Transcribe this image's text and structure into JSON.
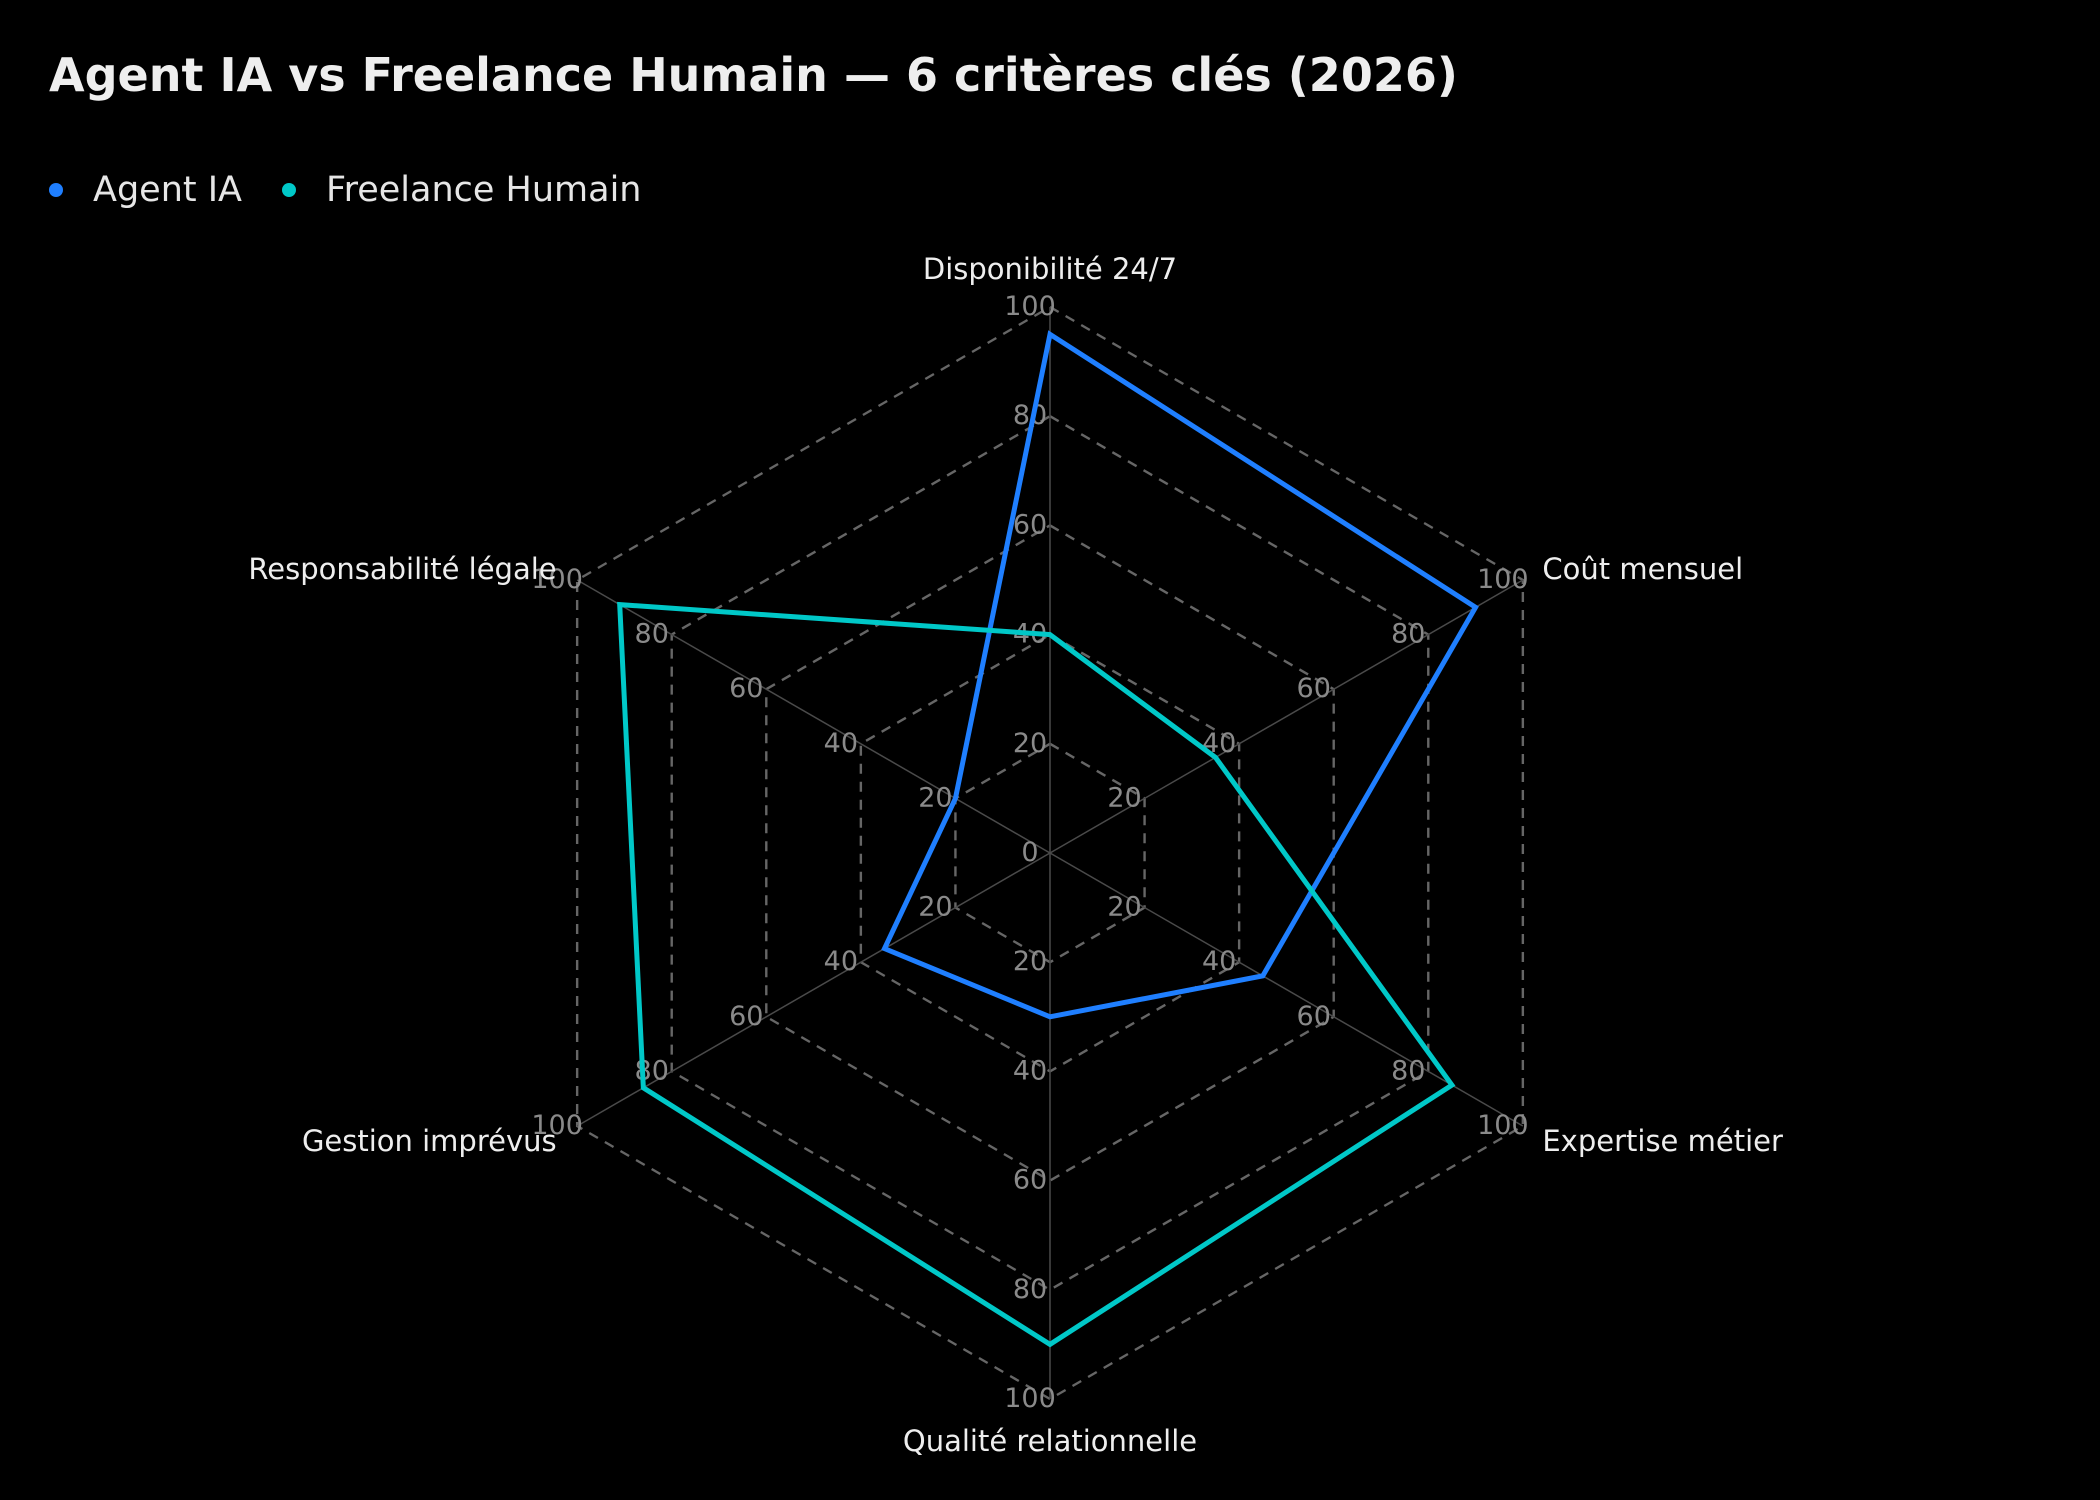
{
  "chart_data": {
    "type": "radar",
    "title": "Agent IA vs Freelance Humain — 6 critères clés (2026)",
    "categories": [
      "Disponibilité 24/7",
      "Coût mensuel",
      "Expertise métier",
      "Qualité relationnelle",
      "Gestion imprévus",
      "Responsabilité légale"
    ],
    "series": [
      {
        "name": "Agent IA",
        "color": "#1f7fff",
        "values": [
          95,
          90,
          45,
          30,
          35,
          20
        ]
      },
      {
        "name": "Freelance Humain",
        "color": "#00c8c8",
        "values": [
          40,
          35,
          85,
          90,
          86,
          91
        ]
      }
    ],
    "ticks": [
      "0",
      "20",
      "40",
      "60",
      "80",
      "100"
    ],
    "rlim": [
      0,
      100
    ],
    "grid": true,
    "legend": "top-left"
  }
}
